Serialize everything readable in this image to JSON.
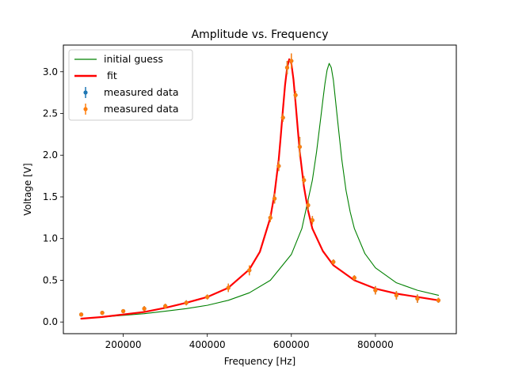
{
  "chart_data": {
    "type": "line",
    "title": "Amplitude vs. Frequency",
    "xlabel": "Frequency [Hz]",
    "ylabel": "Voltage [V]",
    "xlim": [
      57500,
      992500
    ],
    "ylim": [
      -0.14,
      3.32
    ],
    "xticks": [
      200000,
      400000,
      600000,
      800000
    ],
    "yticks": [
      0.0,
      0.5,
      1.0,
      1.5,
      2.0,
      2.5,
      3.0
    ],
    "xtick_labels": [
      "200000",
      "400000",
      "600000",
      "800000"
    ],
    "ytick_labels": [
      "0.0",
      "0.5",
      "1.0",
      "1.5",
      "2.0",
      "2.5",
      "3.0"
    ],
    "grid": false,
    "legend_position": "top-left",
    "series": [
      {
        "name": "initial guess",
        "kind": "line",
        "color": "#008000",
        "x": [
          100000,
          150000,
          200000,
          250000,
          300000,
          350000,
          400000,
          450000,
          500000,
          550000,
          600000,
          625000,
          650000,
          660000,
          670000,
          675000,
          680000,
          685000,
          690000,
          695000,
          700000,
          710000,
          720000,
          730000,
          740000,
          750000,
          775000,
          800000,
          850000,
          900000,
          950000
        ],
        "y": [
          0.04,
          0.06,
          0.08,
          0.1,
          0.13,
          0.16,
          0.2,
          0.26,
          0.35,
          0.5,
          0.81,
          1.12,
          1.7,
          2.04,
          2.45,
          2.66,
          2.86,
          3.02,
          3.1,
          3.05,
          2.9,
          2.42,
          1.95,
          1.58,
          1.32,
          1.12,
          0.82,
          0.65,
          0.47,
          0.38,
          0.32
        ]
      },
      {
        "name": " fit",
        "kind": "line",
        "color": "#ff0000",
        "x": [
          100000,
          150000,
          200000,
          250000,
          300000,
          350000,
          400000,
          450000,
          500000,
          525000,
          550000,
          560000,
          570000,
          575000,
          580000,
          585000,
          590000,
          595000,
          600000,
          605000,
          610000,
          615000,
          620000,
          630000,
          640000,
          650000,
          675000,
          700000,
          750000,
          800000,
          850000,
          900000,
          950000
        ],
        "y": [
          0.04,
          0.06,
          0.09,
          0.12,
          0.17,
          0.23,
          0.3,
          0.41,
          0.63,
          0.84,
          1.25,
          1.54,
          1.95,
          2.24,
          2.55,
          2.84,
          3.05,
          3.15,
          3.1,
          2.91,
          2.63,
          2.33,
          2.04,
          1.62,
          1.33,
          1.12,
          0.85,
          0.68,
          0.5,
          0.4,
          0.34,
          0.3,
          0.26
        ]
      },
      {
        "name": "measured data",
        "kind": "errorbar",
        "color": "#1f77b4",
        "x": [
          100000,
          150000,
          200000,
          250000,
          300000,
          350000,
          400000,
          450000,
          500000,
          550000,
          560000,
          570000,
          580000,
          590000,
          600000,
          610000,
          620000,
          630000,
          640000,
          650000,
          700000,
          750000,
          800000,
          850000,
          900000,
          950000
        ],
        "y": [
          0.09,
          0.11,
          0.13,
          0.16,
          0.19,
          0.23,
          0.3,
          0.41,
          0.62,
          1.25,
          1.48,
          1.87,
          2.45,
          3.05,
          3.13,
          2.72,
          2.1,
          1.7,
          1.4,
          1.22,
          0.72,
          0.53,
          0.38,
          0.32,
          0.28,
          0.26
        ],
        "yerr": [
          0.02,
          0.02,
          0.02,
          0.03,
          0.03,
          0.03,
          0.03,
          0.05,
          0.06,
          0.05,
          0.06,
          0.06,
          0.05,
          0.08,
          0.09,
          0.05,
          0.12,
          0.05,
          0.06,
          0.05,
          0.03,
          0.03,
          0.05,
          0.05,
          0.05,
          0.03
        ]
      },
      {
        "name": "measured data",
        "kind": "errorbar",
        "color": "#ff7f0e",
        "x": [
          100000,
          150000,
          200000,
          250000,
          300000,
          350000,
          400000,
          450000,
          500000,
          550000,
          560000,
          570000,
          580000,
          590000,
          600000,
          610000,
          620000,
          630000,
          640000,
          650000,
          700000,
          750000,
          800000,
          850000,
          900000,
          950000
        ],
        "y": [
          0.09,
          0.11,
          0.13,
          0.16,
          0.19,
          0.23,
          0.3,
          0.41,
          0.62,
          1.25,
          1.48,
          1.87,
          2.45,
          3.05,
          3.13,
          2.72,
          2.1,
          1.7,
          1.4,
          1.22,
          0.72,
          0.53,
          0.38,
          0.32,
          0.28,
          0.26
        ],
        "yerr": [
          0.02,
          0.02,
          0.02,
          0.03,
          0.03,
          0.03,
          0.03,
          0.05,
          0.06,
          0.05,
          0.06,
          0.06,
          0.05,
          0.08,
          0.09,
          0.05,
          0.12,
          0.05,
          0.06,
          0.05,
          0.03,
          0.03,
          0.05,
          0.05,
          0.05,
          0.03
        ]
      }
    ]
  }
}
